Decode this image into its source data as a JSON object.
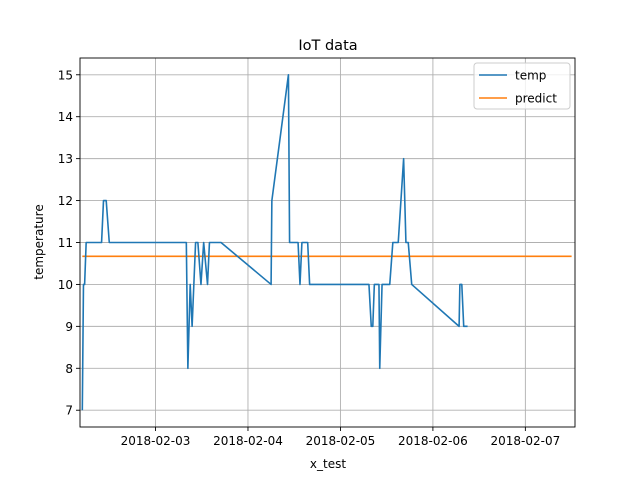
{
  "chart_data": {
    "type": "line",
    "title": "IoT data",
    "xlabel": "x_test",
    "ylabel": "temperature",
    "xlim": [
      "2018-02-02 04:24",
      "2018-02-07 12:53"
    ],
    "ylim": [
      6.6,
      15.4
    ],
    "grid": true,
    "legend_position": "upper right",
    "x_ticks": [
      {
        "date": "2018-02-03",
        "label": "2018-02-03"
      },
      {
        "date": "2018-02-04",
        "label": "2018-02-04"
      },
      {
        "date": "2018-02-05",
        "label": "2018-02-05"
      },
      {
        "date": "2018-02-06",
        "label": "2018-02-06"
      },
      {
        "date": "2018-02-07",
        "label": "2018-02-07"
      }
    ],
    "y_ticks": [
      {
        "value": 7,
        "label": "7"
      },
      {
        "value": 8,
        "label": "8"
      },
      {
        "value": 9,
        "label": "9"
      },
      {
        "value": 10,
        "label": "10"
      },
      {
        "value": 11,
        "label": "11"
      },
      {
        "value": 12,
        "label": "12"
      },
      {
        "value": 13,
        "label": "13"
      },
      {
        "value": 14,
        "label": "14"
      },
      {
        "value": 15,
        "label": "15"
      }
    ],
    "series": [
      {
        "name": "temp",
        "color": "#1f77b4",
        "points": [
          [
            "2018-02-02 05:00",
            7
          ],
          [
            "2018-02-02 05:18",
            10
          ],
          [
            "2018-02-02 05:36",
            10
          ],
          [
            "2018-02-02 06:00",
            11
          ],
          [
            "2018-02-02 10:00",
            11
          ],
          [
            "2018-02-02 10:30",
            12
          ],
          [
            "2018-02-02 11:12",
            12
          ],
          [
            "2018-02-02 12:00",
            11
          ],
          [
            "2018-02-03 08:00",
            11
          ],
          [
            "2018-02-03 08:24",
            8
          ],
          [
            "2018-02-03 09:00",
            10
          ],
          [
            "2018-02-03 09:30",
            9
          ],
          [
            "2018-02-03 10:24",
            11
          ],
          [
            "2018-02-03 11:00",
            11
          ],
          [
            "2018-02-03 11:48",
            10
          ],
          [
            "2018-02-03 12:30",
            11
          ],
          [
            "2018-02-03 13:30",
            10
          ],
          [
            "2018-02-03 14:00",
            11
          ],
          [
            "2018-02-03 17:00",
            11
          ],
          [
            "2018-02-04 06:00",
            10
          ],
          [
            "2018-02-04 06:12",
            12
          ],
          [
            "2018-02-04 10:30",
            15
          ],
          [
            "2018-02-04 10:48",
            11
          ],
          [
            "2018-02-04 13:00",
            11
          ],
          [
            "2018-02-04 13:30",
            10
          ],
          [
            "2018-02-04 14:00",
            11
          ],
          [
            "2018-02-04 15:30",
            11
          ],
          [
            "2018-02-04 16:00",
            10
          ],
          [
            "2018-02-05 07:24",
            10
          ],
          [
            "2018-02-05 08:00",
            9
          ],
          [
            "2018-02-05 08:24",
            9
          ],
          [
            "2018-02-05 08:48",
            10
          ],
          [
            "2018-02-05 10:00",
            10
          ],
          [
            "2018-02-05 10:12",
            8
          ],
          [
            "2018-02-05 10:48",
            10
          ],
          [
            "2018-02-05 12:48",
            10
          ],
          [
            "2018-02-05 13:36",
            11
          ],
          [
            "2018-02-05 15:00",
            11
          ],
          [
            "2018-02-05 16:24",
            13
          ],
          [
            "2018-02-05 17:00",
            11
          ],
          [
            "2018-02-05 17:36",
            11
          ],
          [
            "2018-02-05 18:30",
            10
          ],
          [
            "2018-02-06 06:48",
            9
          ],
          [
            "2018-02-06 07:00",
            10
          ],
          [
            "2018-02-06 07:30",
            10
          ],
          [
            "2018-02-06 08:00",
            9
          ],
          [
            "2018-02-06 09:00",
            9
          ]
        ]
      },
      {
        "name": "predict",
        "color": "#ff7f0e",
        "points": [
          [
            "2018-02-02 05:00",
            10.67
          ],
          [
            "2018-02-07 12:00",
            10.67
          ]
        ]
      }
    ]
  }
}
